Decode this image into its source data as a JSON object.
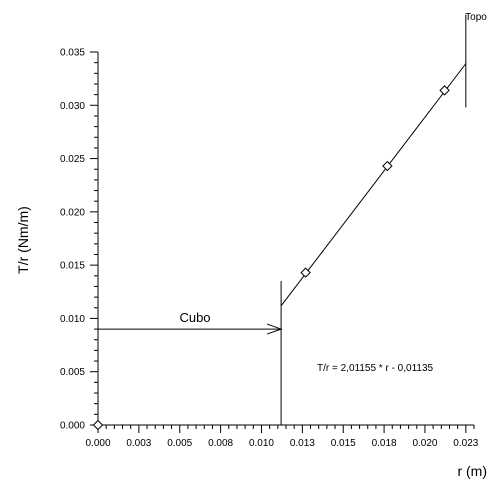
{
  "chart_data": {
    "type": "scatter",
    "xlabel": "r (m)",
    "ylabel": "T/r (Nm/m)",
    "xlim": [
      0,
      0.023
    ],
    "ylim": [
      0,
      0.035
    ],
    "x_ticks": [
      0,
      0.0025,
      0.005,
      0.0075,
      0.01,
      0.0125,
      0.015,
      0.0175,
      0.02,
      0.0225
    ],
    "x_tick_labels": [
      "0.000",
      "0.003",
      "0.005",
      "0.008",
      "0.010",
      "0.013",
      "0.015",
      "0.018",
      "0.020",
      "0.023"
    ],
    "y_ticks": [
      0,
      0.005,
      0.01,
      0.015,
      0.02,
      0.025,
      0.03,
      0.035
    ],
    "y_tick_labels": [
      "0.000",
      "0.005",
      "0.010",
      "0.015",
      "0.020",
      "0.025",
      "0.030",
      "0.035"
    ],
    "series": [
      {
        "marker": "diamond",
        "x": [
          0,
          0.0127,
          0.0177,
          0.0212
        ],
        "y": [
          0,
          0.0143,
          0.0243,
          0.0314
        ]
      }
    ],
    "fit_line": {
      "equation": "T/r = 2,01155 * r - 0,01135",
      "slope": 2.01155,
      "intercept": -0.01135,
      "x_range": [
        0.0112,
        0.0225
      ]
    },
    "annotations": {
      "hub_label": "Cubo",
      "tip_label": "Topo",
      "hub_radius": 0.0112,
      "hub_marker_ylim": [
        0,
        0.0135
      ],
      "hub_arrow_y": 0.009,
      "tip_radius": 0.0225,
      "tip_marker_ylim": [
        0.0298,
        0.0385
      ]
    },
    "grid": false,
    "legend": "none",
    "colors": {
      "line": "#000000",
      "marker_fill": "#ffffff"
    }
  }
}
